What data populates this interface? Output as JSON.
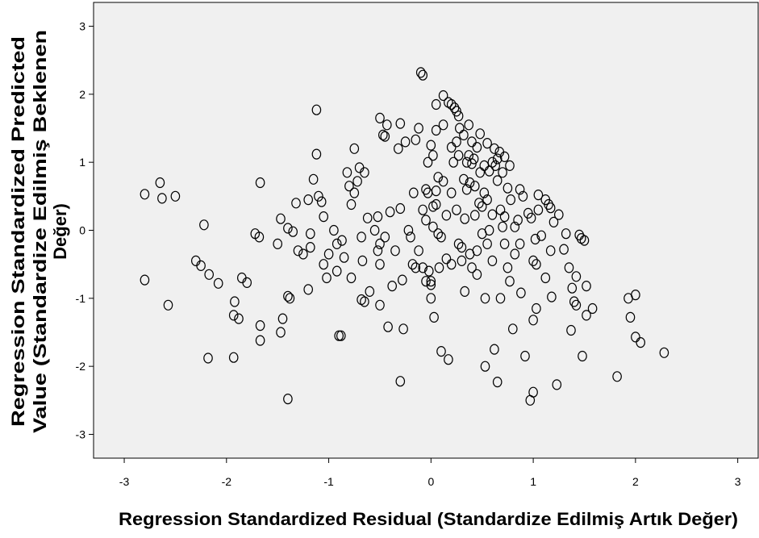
{
  "chart_data": {
    "type": "scatter",
    "title": "",
    "xlabel": "Regression Standardized Residual (Standardize Edilmiş Artık Değer)",
    "ylabel_lines": [
      "Regression Standardized Predicted",
      "Value (Standardize Edilmiş Beklenen",
      "Değer)"
    ],
    "xlim": [
      -3.3,
      3.2
    ],
    "ylim": [
      -3.35,
      3.35
    ],
    "xticks": [
      -3,
      -2,
      -1,
      0,
      1,
      2,
      3
    ],
    "yticks": [
      -3,
      -2,
      -1,
      0,
      1,
      2,
      3
    ],
    "grid": false,
    "legend": "none",
    "plot_background": "#f0f0f0",
    "marker": "open-circle",
    "marker_color": "#000000",
    "points": [
      [
        -2.8,
        0.53
      ],
      [
        -2.65,
        0.7
      ],
      [
        -2.63,
        0.47
      ],
      [
        -2.5,
        0.5
      ],
      [
        -2.8,
        -0.73
      ],
      [
        -2.57,
        -1.1
      ],
      [
        -2.3,
        -0.45
      ],
      [
        -2.25,
        -0.52
      ],
      [
        -2.22,
        0.08
      ],
      [
        -2.17,
        -0.65
      ],
      [
        -2.08,
        -0.78
      ],
      [
        -2.18,
        -1.88
      ],
      [
        -1.92,
        -1.05
      ],
      [
        -1.93,
        -1.25
      ],
      [
        -1.88,
        -1.3
      ],
      [
        -1.85,
        -0.7
      ],
      [
        -1.8,
        -0.77
      ],
      [
        -1.93,
        -1.87
      ],
      [
        -1.72,
        -0.05
      ],
      [
        -1.68,
        -0.1
      ],
      [
        -1.67,
        0.7
      ],
      [
        -1.67,
        -1.4
      ],
      [
        -1.67,
        -1.62
      ],
      [
        -1.5,
        -0.2
      ],
      [
        -1.47,
        0.17
      ],
      [
        -1.45,
        -1.3
      ],
      [
        -1.47,
        -1.5
      ],
      [
        -1.4,
        0.03
      ],
      [
        -1.35,
        -0.02
      ],
      [
        -1.4,
        -0.97
      ],
      [
        -1.38,
        -1.0
      ],
      [
        -1.4,
        -2.48
      ],
      [
        -1.32,
        0.4
      ],
      [
        -1.3,
        -0.3
      ],
      [
        -1.25,
        -0.35
      ],
      [
        -1.2,
        0.45
      ],
      [
        -1.18,
        -0.05
      ],
      [
        -1.18,
        -0.25
      ],
      [
        -1.2,
        -0.87
      ],
      [
        -1.15,
        0.75
      ],
      [
        -1.12,
        1.77
      ],
      [
        -1.12,
        1.12
      ],
      [
        -1.1,
        0.5
      ],
      [
        -1.07,
        0.42
      ],
      [
        -1.05,
        0.2
      ],
      [
        -1.05,
        -0.5
      ],
      [
        -1.0,
        -0.35
      ],
      [
        -1.02,
        -0.7
      ],
      [
        -0.95,
        0.0
      ],
      [
        -0.92,
        -0.2
      ],
      [
        -0.92,
        -0.6
      ],
      [
        -0.9,
        -1.55
      ],
      [
        -0.88,
        -1.55
      ],
      [
        -0.87,
        -0.15
      ],
      [
        -0.85,
        -0.4
      ],
      [
        -0.82,
        0.85
      ],
      [
        -0.8,
        0.65
      ],
      [
        -0.78,
        -0.7
      ],
      [
        -0.78,
        0.38
      ],
      [
        -0.75,
        1.2
      ],
      [
        -0.75,
        0.55
      ],
      [
        -0.72,
        0.72
      ],
      [
        -0.7,
        0.92
      ],
      [
        -0.68,
        -0.1
      ],
      [
        -0.67,
        -0.45
      ],
      [
        -0.68,
        -1.02
      ],
      [
        -0.65,
        -1.05
      ],
      [
        -0.65,
        0.85
      ],
      [
        -0.62,
        0.18
      ],
      [
        -0.6,
        -0.9
      ],
      [
        -0.55,
        0.0
      ],
      [
        -0.52,
        0.2
      ],
      [
        -0.52,
        -0.3
      ],
      [
        -0.5,
        -0.2
      ],
      [
        -0.5,
        -0.5
      ],
      [
        -0.5,
        -1.1
      ],
      [
        -0.5,
        1.65
      ],
      [
        -0.47,
        1.4
      ],
      [
        -0.45,
        1.38
      ],
      [
        -0.45,
        -0.1
      ],
      [
        -0.43,
        1.55
      ],
      [
        -0.42,
        -1.42
      ],
      [
        -0.4,
        0.27
      ],
      [
        -0.38,
        -0.82
      ],
      [
        -0.35,
        -0.3
      ],
      [
        -0.32,
        1.2
      ],
      [
        -0.3,
        1.57
      ],
      [
        -0.3,
        0.32
      ],
      [
        -0.3,
        -2.22
      ],
      [
        -0.28,
        -0.73
      ],
      [
        -0.27,
        -1.45
      ],
      [
        -0.25,
        1.3
      ],
      [
        -0.22,
        0.0
      ],
      [
        -0.2,
        -0.1
      ],
      [
        -0.18,
        -0.5
      ],
      [
        -0.17,
        0.55
      ],
      [
        -0.15,
        1.33
      ],
      [
        -0.15,
        -0.55
      ],
      [
        -0.12,
        1.5
      ],
      [
        -0.12,
        -0.3
      ],
      [
        -0.1,
        2.32
      ],
      [
        -0.08,
        2.28
      ],
      [
        -0.08,
        0.3
      ],
      [
        -0.08,
        -0.55
      ],
      [
        -0.05,
        0.6
      ],
      [
        -0.05,
        0.15
      ],
      [
        -0.05,
        -0.75
      ],
      [
        -0.03,
        1.0
      ],
      [
        -0.03,
        0.55
      ],
      [
        -0.02,
        -0.6
      ],
      [
        0.0,
        -0.75
      ],
      [
        0.0,
        -0.8
      ],
      [
        0.0,
        -1.0
      ],
      [
        0.0,
        1.25
      ],
      [
        0.02,
        1.1
      ],
      [
        0.02,
        0.35
      ],
      [
        0.02,
        0.05
      ],
      [
        0.03,
        -1.28
      ],
      [
        0.05,
        1.85
      ],
      [
        0.05,
        1.47
      ],
      [
        0.05,
        0.58
      ],
      [
        0.05,
        0.38
      ],
      [
        0.07,
        0.78
      ],
      [
        0.07,
        -0.05
      ],
      [
        0.08,
        -0.55
      ],
      [
        0.1,
        -1.78
      ],
      [
        0.1,
        -0.1
      ],
      [
        0.12,
        1.98
      ],
      [
        0.12,
        1.55
      ],
      [
        0.12,
        0.72
      ],
      [
        0.15,
        0.22
      ],
      [
        0.15,
        -0.42
      ],
      [
        0.17,
        1.88
      ],
      [
        0.17,
        -1.9
      ],
      [
        0.2,
        1.85
      ],
      [
        0.2,
        1.22
      ],
      [
        0.2,
        0.55
      ],
      [
        0.2,
        -0.5
      ],
      [
        0.22,
        1.0
      ],
      [
        0.23,
        1.8
      ],
      [
        0.25,
        1.75
      ],
      [
        0.25,
        1.3
      ],
      [
        0.25,
        0.3
      ],
      [
        0.27,
        1.68
      ],
      [
        0.27,
        1.1
      ],
      [
        0.27,
        -0.2
      ],
      [
        0.28,
        1.5
      ],
      [
        0.3,
        -0.25
      ],
      [
        0.3,
        -0.45
      ],
      [
        0.32,
        1.4
      ],
      [
        0.32,
        0.75
      ],
      [
        0.33,
        0.17
      ],
      [
        0.33,
        -0.9
      ],
      [
        0.35,
        1.0
      ],
      [
        0.35,
        0.6
      ],
      [
        0.37,
        1.55
      ],
      [
        0.37,
        1.1
      ],
      [
        0.38,
        0.7
      ],
      [
        0.38,
        -0.35
      ],
      [
        0.4,
        1.3
      ],
      [
        0.4,
        0.98
      ],
      [
        0.4,
        -0.55
      ],
      [
        0.42,
        1.05
      ],
      [
        0.43,
        0.65
      ],
      [
        0.43,
        0.22
      ],
      [
        0.45,
        1.22
      ],
      [
        0.45,
        -0.3
      ],
      [
        0.45,
        -0.65
      ],
      [
        0.47,
        0.4
      ],
      [
        0.48,
        1.42
      ],
      [
        0.48,
        0.85
      ],
      [
        0.5,
        0.35
      ],
      [
        0.5,
        -0.05
      ],
      [
        0.52,
        0.95
      ],
      [
        0.52,
        0.55
      ],
      [
        0.53,
        -2.0
      ],
      [
        0.53,
        -1.0
      ],
      [
        0.55,
        1.28
      ],
      [
        0.55,
        0.45
      ],
      [
        0.55,
        -0.2
      ],
      [
        0.57,
        0.87
      ],
      [
        0.57,
        0.0
      ],
      [
        0.6,
        1.0
      ],
      [
        0.6,
        0.23
      ],
      [
        0.6,
        -0.45
      ],
      [
        0.62,
        1.2
      ],
      [
        0.62,
        -1.75
      ],
      [
        0.63,
        0.95
      ],
      [
        0.65,
        0.73
      ],
      [
        0.65,
        1.05
      ],
      [
        0.65,
        -2.23
      ],
      [
        0.67,
        1.15
      ],
      [
        0.68,
        0.3
      ],
      [
        0.68,
        -1.0
      ],
      [
        0.7,
        0.85
      ],
      [
        0.7,
        0.05
      ],
      [
        0.72,
        1.08
      ],
      [
        0.72,
        0.2
      ],
      [
        0.72,
        -0.2
      ],
      [
        0.75,
        0.62
      ],
      [
        0.75,
        -0.55
      ],
      [
        0.77,
        0.95
      ],
      [
        0.77,
        -0.75
      ],
      [
        0.78,
        0.45
      ],
      [
        0.8,
        -1.45
      ],
      [
        0.82,
        0.05
      ],
      [
        0.82,
        -0.35
      ],
      [
        0.85,
        0.15
      ],
      [
        0.87,
        0.6
      ],
      [
        0.87,
        -0.2
      ],
      [
        0.88,
        -0.92
      ],
      [
        0.9,
        0.5
      ],
      [
        0.92,
        -1.85
      ],
      [
        0.95,
        0.25
      ],
      [
        0.97,
        -2.5
      ],
      [
        0.98,
        0.18
      ],
      [
        1.0,
        -2.38
      ],
      [
        1.0,
        -1.32
      ],
      [
        1.0,
        -0.45
      ],
      [
        1.02,
        -0.13
      ],
      [
        1.03,
        -1.15
      ],
      [
        1.03,
        -0.5
      ],
      [
        1.05,
        0.52
      ],
      [
        1.05,
        0.3
      ],
      [
        1.08,
        -0.08
      ],
      [
        1.12,
        0.45
      ],
      [
        1.12,
        -0.7
      ],
      [
        1.15,
        0.38
      ],
      [
        1.17,
        0.33
      ],
      [
        1.17,
        -0.3
      ],
      [
        1.18,
        -0.98
      ],
      [
        1.2,
        0.12
      ],
      [
        1.23,
        -2.27
      ],
      [
        1.25,
        0.23
      ],
      [
        1.3,
        -0.28
      ],
      [
        1.32,
        -0.05
      ],
      [
        1.35,
        -0.55
      ],
      [
        1.37,
        -1.47
      ],
      [
        1.38,
        -0.85
      ],
      [
        1.4,
        -1.05
      ],
      [
        1.42,
        -0.68
      ],
      [
        1.42,
        -1.1
      ],
      [
        1.45,
        -0.07
      ],
      [
        1.47,
        -0.12
      ],
      [
        1.48,
        -1.85
      ],
      [
        1.5,
        -0.15
      ],
      [
        1.52,
        -0.82
      ],
      [
        1.52,
        -1.25
      ],
      [
        1.58,
        -1.15
      ],
      [
        1.82,
        -2.15
      ],
      [
        1.93,
        -1.0
      ],
      [
        1.95,
        -1.28
      ],
      [
        2.0,
        -0.95
      ],
      [
        2.0,
        -1.57
      ],
      [
        2.05,
        -1.65
      ],
      [
        2.28,
        -1.8
      ]
    ]
  }
}
